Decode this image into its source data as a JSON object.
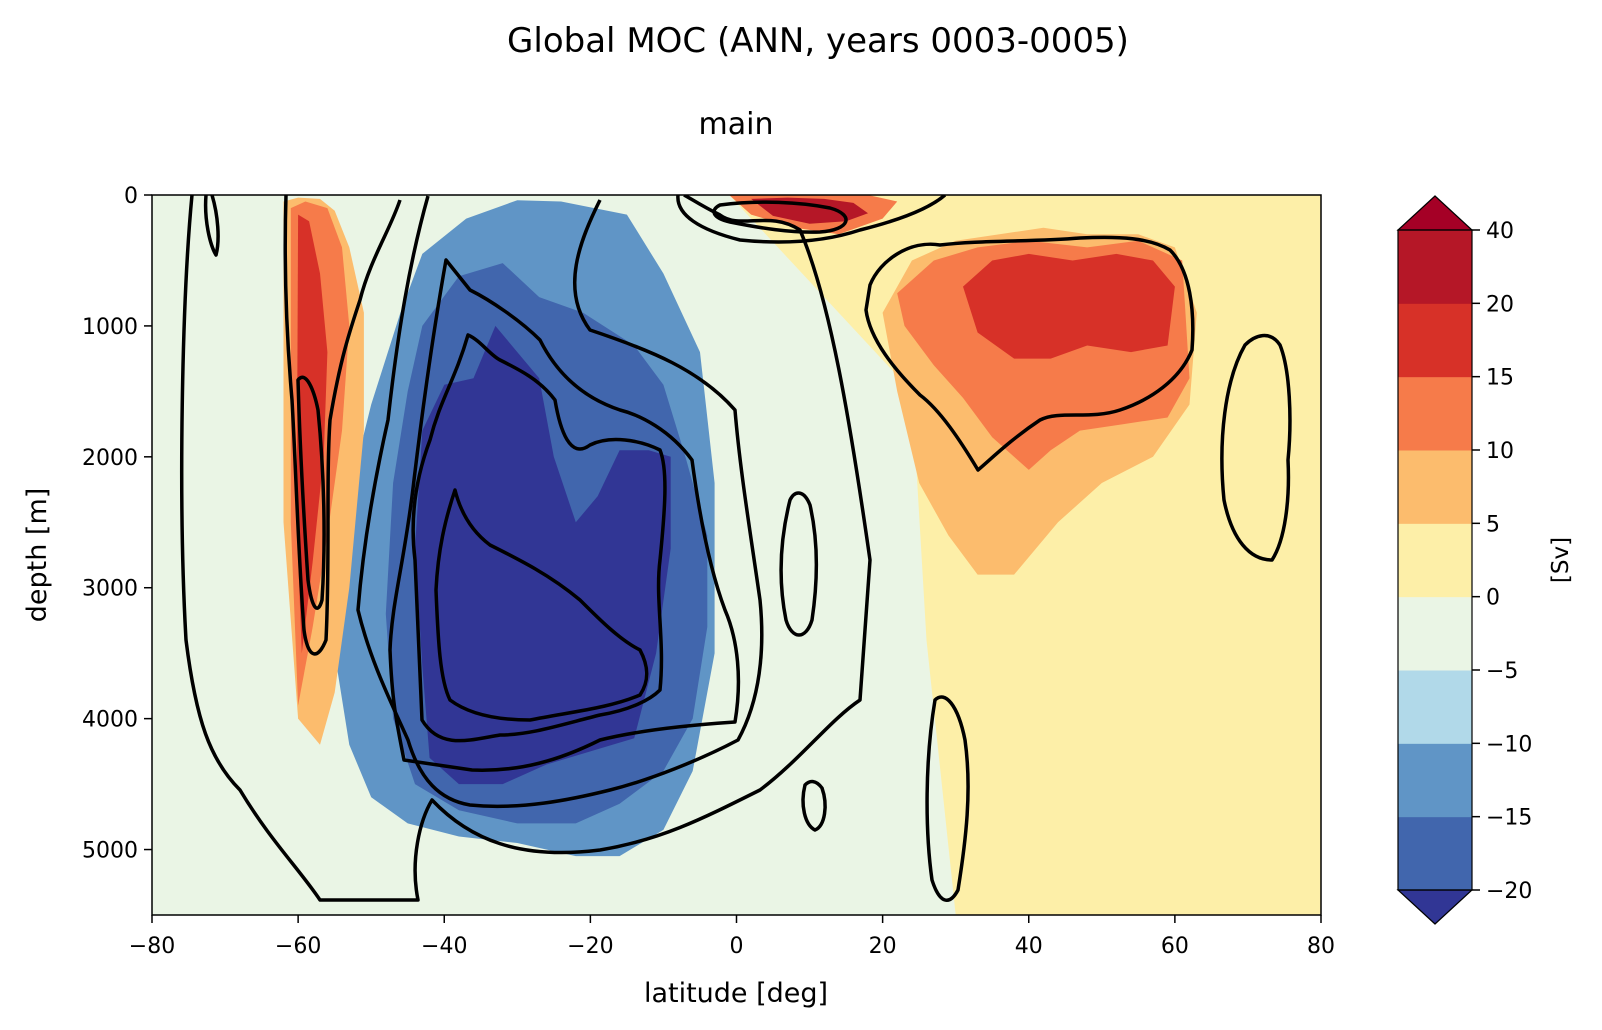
{
  "chart_data": {
    "type": "heatmap",
    "title": "Global MOC (ANN, years 0003-0005)",
    "subtitle": "main",
    "xlabel": "latitude [deg]",
    "ylabel": "depth [m]",
    "xlim": [
      -80,
      80
    ],
    "ylim": [
      0,
      5500
    ],
    "y_inverted": true,
    "xticks": [
      -80,
      -60,
      -40,
      -20,
      0,
      20,
      40,
      60,
      80
    ],
    "xtick_labels": [
      "−80",
      "−60",
      "−40",
      "−20",
      "0",
      "20",
      "40",
      "60",
      "80"
    ],
    "yticks": [
      0,
      1000,
      2000,
      3000,
      4000,
      5000
    ],
    "ytick_labels": [
      "0",
      "1000",
      "2000",
      "3000",
      "4000",
      "5000"
    ],
    "colorbar": {
      "label": "[Sv]",
      "levels": [
        -20,
        -15,
        -10,
        -5,
        0,
        5,
        10,
        15,
        20,
        40
      ],
      "tick_labels": [
        "−20",
        "−15",
        "−10",
        "−5",
        "0",
        "5",
        "10",
        "15",
        "20",
        "40"
      ],
      "colors": [
        "#4166ad",
        "#6095c6",
        "#b1d9e9",
        "#eaf5e5",
        "#fdefa8",
        "#fcbc6d",
        "#f67b4a",
        "#d73128",
        "#b51727"
      ],
      "under_color": "#313695",
      "over_color": "#a50026",
      "extend": "both"
    },
    "regions": [
      {
        "level": -15,
        "lon": [
          -46,
          -43,
          -37,
          -30,
          -24,
          -15,
          -10,
          -5,
          -3,
          -3,
          -6,
          -10,
          -16,
          -22,
          -30,
          -38,
          -45,
          -50,
          -53,
          -55,
          -54,
          -50
        ],
        "depth": [
          900,
          450,
          180,
          40,
          50,
          150,
          600,
          1200,
          2200,
          3500,
          4400,
          4850,
          5050,
          5050,
          4950,
          4900,
          4800,
          4600,
          4200,
          3500,
          2500,
          1600
        ]
      },
      {
        "level": -20,
        "lon": [
          -45,
          -43,
          -38,
          -32,
          -27,
          -21,
          -14,
          -10,
          -7,
          -4,
          -4,
          -6,
          -10,
          -16,
          -22,
          -30,
          -38,
          -44,
          -47,
          -48,
          -47
        ],
        "depth": [
          1500,
          1000,
          620,
          520,
          780,
          900,
          1150,
          1450,
          2000,
          2600,
          3300,
          4000,
          4400,
          4650,
          4800,
          4800,
          4700,
          4500,
          4000,
          3200,
          2200
        ]
      },
      {
        "level": -25,
        "lon": [
          -43,
          -40,
          -36,
          -33,
          -27,
          -25,
          -22,
          -19,
          -16,
          -12,
          -9,
          -9,
          -11,
          -14,
          -20,
          -26,
          -32,
          -38,
          -42,
          -43,
          -44
        ],
        "depth": [
          1800,
          1450,
          1400,
          1000,
          1400,
          2000,
          2500,
          2300,
          1950,
          1950,
          2000,
          2700,
          3500,
          4150,
          4250,
          4350,
          4500,
          4500,
          4300,
          3600,
          2700
        ]
      },
      {
        "level": 5,
        "lon": [
          -62,
          -60,
          -57,
          -55,
          -53,
          -51,
          -51,
          -53,
          -55,
          -57,
          -60,
          -62
        ],
        "depth": [
          50,
          20,
          30,
          120,
          400,
          900,
          1800,
          3000,
          3800,
          4200,
          4000,
          2500
        ]
      },
      {
        "level": 10,
        "lon": [
          -61,
          -59,
          -56,
          -54,
          -53,
          -54,
          -56,
          -58,
          -60,
          -61
        ],
        "depth": [
          100,
          50,
          100,
          400,
          1000,
          1800,
          2600,
          3300,
          3900,
          2500
        ]
      },
      {
        "level": 15,
        "lon": [
          -60,
          -58.5,
          -57,
          -56,
          -56.5,
          -58,
          -59.5,
          -60.2
        ],
        "depth": [
          150,
          200,
          600,
          1200,
          2000,
          2800,
          3500,
          2500
        ]
      },
      {
        "level": 0,
        "lon": [
          -1,
          10,
          20,
          26,
          34,
          40,
          48,
          57,
          63,
          70,
          78,
          80,
          80,
          78,
          70,
          60,
          50,
          40,
          30,
          26,
          24
        ],
        "depth": [
          0,
          0,
          0,
          0,
          0,
          0,
          0,
          0,
          0,
          0,
          0,
          0,
          5500,
          5500,
          5500,
          5500,
          5500,
          5500,
          5500,
          3400,
          1500
        ]
      },
      {
        "level": 5,
        "lon": [
          20,
          24,
          30,
          36,
          42,
          48,
          55,
          60,
          63,
          62,
          57,
          50,
          44,
          38,
          33,
          29,
          25,
          22
        ],
        "depth": [
          900,
          500,
          350,
          300,
          250,
          300,
          300,
          400,
          900,
          1600,
          2000,
          2200,
          2500,
          2900,
          2900,
          2600,
          2200,
          1500
        ]
      },
      {
        "level": 10,
        "lon": [
          22,
          27,
          33,
          40,
          48,
          55,
          61,
          62,
          59,
          53,
          47,
          43,
          40,
          35,
          31,
          27,
          23
        ],
        "depth": [
          750,
          500,
          400,
          350,
          400,
          350,
          500,
          1400,
          1700,
          1750,
          1800,
          1950,
          2100,
          1850,
          1550,
          1300,
          1000
        ]
      },
      {
        "level": 15,
        "lon": [
          31,
          35,
          40,
          46,
          52,
          57,
          60,
          59,
          54,
          48,
          43,
          38,
          33
        ],
        "depth": [
          700,
          500,
          450,
          500,
          450,
          500,
          700,
          1150,
          1200,
          1150,
          1250,
          1250,
          1050
        ]
      },
      {
        "level": 10,
        "lon": [
          -1,
          5,
          12,
          18,
          22,
          20,
          14,
          8,
          2
        ],
        "depth": [
          0,
          0,
          0,
          0,
          50,
          180,
          300,
          250,
          150
        ]
      },
      {
        "level": 20,
        "lon": [
          2,
          7,
          12,
          16,
          18,
          15,
          10,
          5
        ],
        "depth": [
          30,
          20,
          30,
          60,
          140,
          200,
          220,
          160
        ]
      }
    ]
  }
}
